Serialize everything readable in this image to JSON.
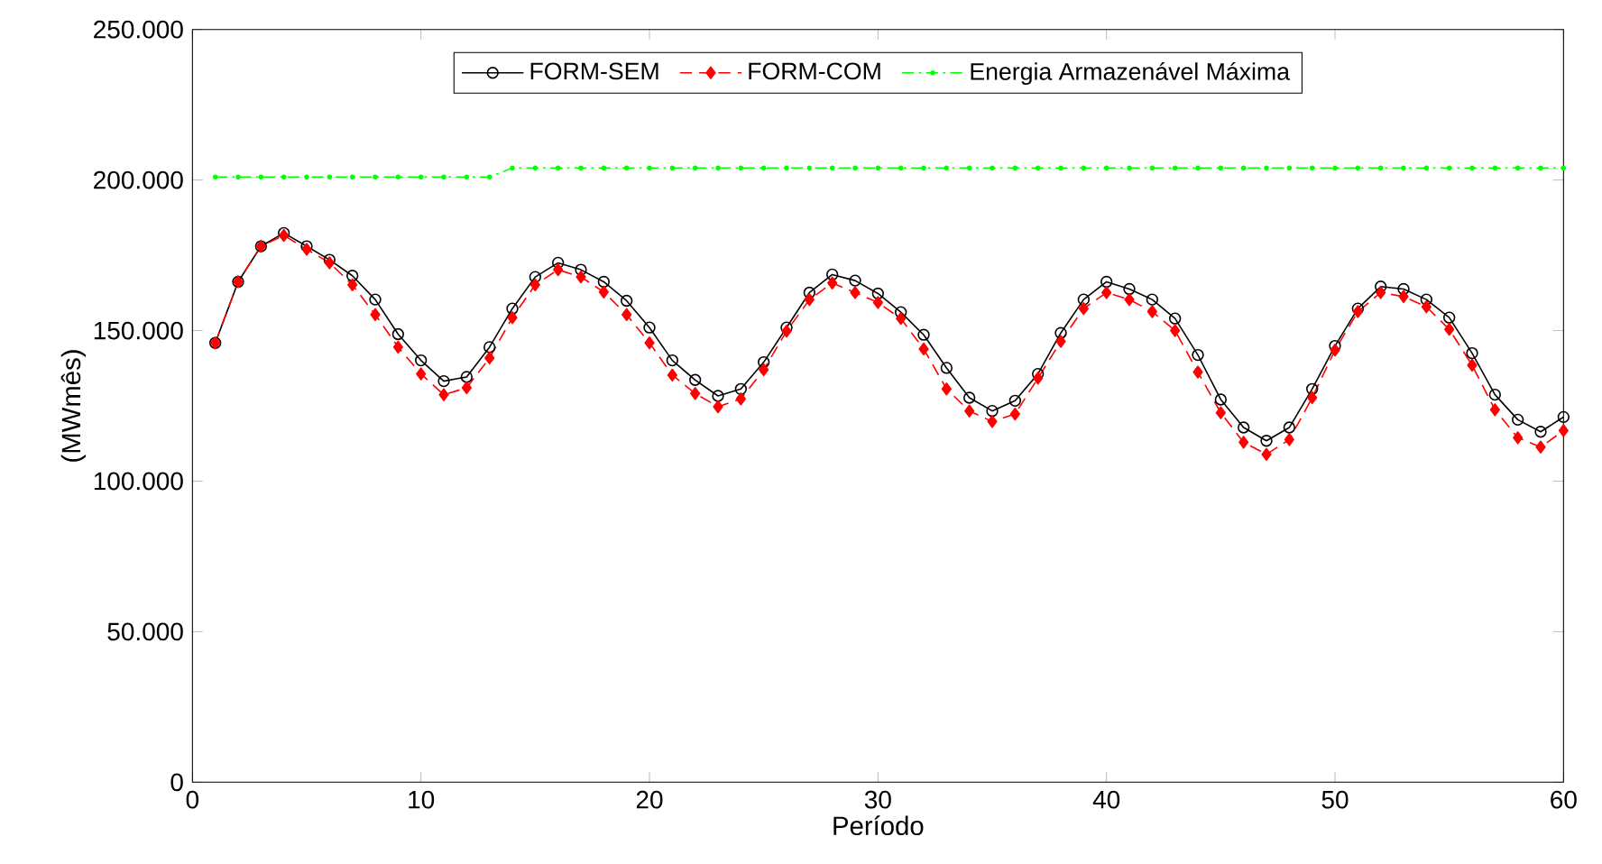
{
  "chart_data": {
    "type": "line",
    "xlabel": "Período",
    "ylabel": "(MWmês)",
    "x": [
      1,
      2,
      3,
      4,
      5,
      6,
      7,
      8,
      9,
      10,
      11,
      12,
      13,
      14,
      15,
      16,
      17,
      18,
      19,
      20,
      21,
      22,
      23,
      24,
      25,
      26,
      27,
      28,
      29,
      30,
      31,
      32,
      33,
      34,
      35,
      36,
      37,
      38,
      39,
      40,
      41,
      42,
      43,
      44,
      45,
      46,
      47,
      48,
      49,
      50,
      51,
      52,
      53,
      54,
      55,
      56,
      57,
      58,
      59,
      60
    ],
    "series": [
      {
        "name": "FORM-SEM",
        "color": "#000000",
        "marker": "circle",
        "line_style": "solid",
        "values": [
          145900,
          166200,
          178000,
          182400,
          178000,
          173500,
          168200,
          160300,
          148800,
          140100,
          133200,
          134600,
          144500,
          157300,
          167800,
          172500,
          170200,
          166200,
          159900,
          151000,
          140100,
          133600,
          128300,
          130600,
          139500,
          151000,
          162600,
          168600,
          166600,
          162300,
          156100,
          148600,
          137600,
          127700,
          123300,
          126700,
          135600,
          149200,
          160300,
          166200,
          163800,
          160300,
          154000,
          141900,
          127100,
          117800,
          113400,
          117800,
          130600,
          144900,
          157300,
          164600,
          163800,
          160300,
          154300,
          142500,
          128700,
          120400,
          116400,
          121300
        ]
      },
      {
        "name": "FORM-COM",
        "color": "#ff0000",
        "marker": "diamond",
        "line_style": "dashed",
        "values": [
          145900,
          166200,
          178000,
          181600,
          177000,
          172500,
          165200,
          155300,
          144500,
          135600,
          128700,
          131000,
          140900,
          154300,
          165200,
          170200,
          167800,
          162800,
          155300,
          145900,
          135200,
          129100,
          124700,
          127300,
          137000,
          149800,
          160300,
          165800,
          162600,
          159300,
          154000,
          143900,
          130600,
          123300,
          119800,
          122300,
          134200,
          146400,
          157300,
          162600,
          160300,
          156300,
          150000,
          136200,
          122700,
          112900,
          108900,
          113800,
          127700,
          143500,
          156300,
          162600,
          161300,
          157900,
          150400,
          138500,
          123700,
          114400,
          111300,
          116800
        ]
      },
      {
        "name": "Energia Armazenável Máxima",
        "color": "#00ff00",
        "marker": "point",
        "line_style": "dashdot",
        "values": [
          201000,
          201000,
          201000,
          201000,
          201000,
          201000,
          201000,
          201000,
          201000,
          201000,
          201000,
          201000,
          201000,
          204000,
          204000,
          204000,
          204000,
          204000,
          204000,
          204000,
          204000,
          204000,
          204000,
          204000,
          204000,
          204000,
          204000,
          204000,
          204000,
          204000,
          204000,
          204000,
          204000,
          204000,
          204000,
          204000,
          204000,
          204000,
          204000,
          204000,
          204000,
          204000,
          204000,
          204000,
          204000,
          204000,
          204000,
          204000,
          204000,
          204000,
          204000,
          204000,
          204000,
          204000,
          204000,
          204000,
          204000,
          204000,
          204000,
          204000
        ]
      }
    ],
    "xlim": [
      0,
      60
    ],
    "xticks": [
      0,
      10,
      20,
      30,
      40,
      50,
      60
    ],
    "ylim": [
      0,
      250000
    ],
    "yticks": [
      0,
      {
        "value": 50000,
        "label": "50.000"
      },
      {
        "value": 100000,
        "label": "100.000"
      },
      {
        "value": 150000,
        "label": "150.000"
      },
      {
        "value": 200000,
        "label": "200.000"
      },
      {
        "value": 250000,
        "label": "250.000"
      }
    ],
    "legend": "top",
    "grid": false
  }
}
